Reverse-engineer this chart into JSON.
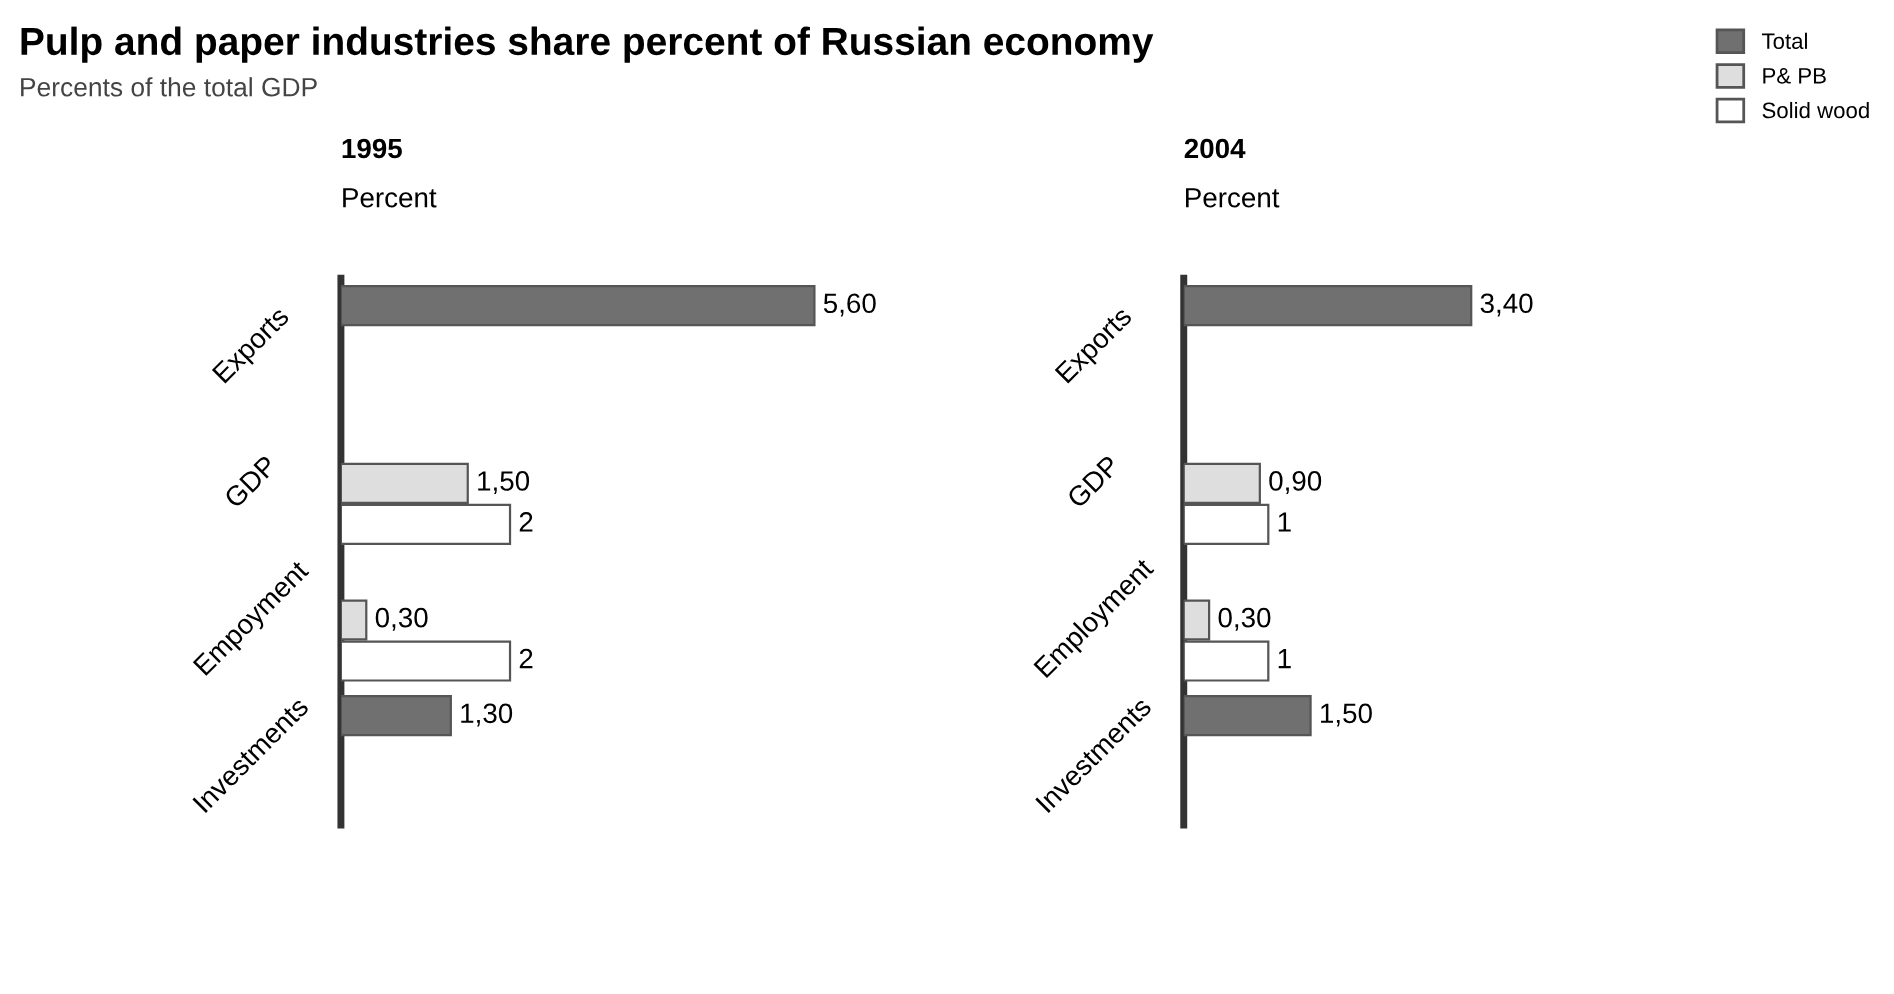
{
  "chart_data": [
    {
      "type": "bar",
      "orientation": "horizontal",
      "title": "1995",
      "subtitle": "Percent",
      "tick_labels": "y",
      "legend": "top right",
      "annotations": [
        "Pulp and paper industries share percent of Russian economy",
        "Percents of the total GDP"
      ],
      "categories": [
        "Exports",
        "GDP",
        "Empoyment",
        "Investments"
      ],
      "series": [
        {
          "name": "Total",
          "color": "#707070",
          "values": [
            5.6,
            null,
            null,
            1.3
          ],
          "value_labels": [
            "5,60",
            null,
            null,
            "1,30"
          ]
        },
        {
          "name": "P& PB",
          "color": "#dedede",
          "values": [
            null,
            1.5,
            0.3,
            null
          ],
          "value_labels": [
            null,
            "1,50",
            "0,30",
            null
          ]
        },
        {
          "name": "Solid wood",
          "color": "#ffffff",
          "values": [
            null,
            2,
            2,
            null
          ],
          "value_labels": [
            null,
            "2",
            "2",
            null
          ]
        }
      ]
    },
    {
      "type": "bar",
      "orientation": "horizontal",
      "title": "2004",
      "subtitle": "Percent",
      "tick_labels": "y",
      "categories": [
        "Exports",
        "GDP",
        "Employment",
        "Investments"
      ],
      "series": [
        {
          "color": "#707070",
          "values": [
            3.4,
            null,
            null,
            1.5
          ],
          "value_labels": [
            "3,40",
            null,
            null,
            "1,50"
          ]
        },
        {
          "color": "#dedede",
          "values": [
            null,
            0.9,
            0.3,
            null
          ],
          "value_labels": [
            null,
            "0,90",
            "0,30",
            null
          ]
        },
        {
          "color": "#ffffff",
          "values": [
            null,
            1,
            1,
            null
          ],
          "value_labels": [
            null,
            "1",
            "1",
            null
          ]
        }
      ]
    }
  ]
}
